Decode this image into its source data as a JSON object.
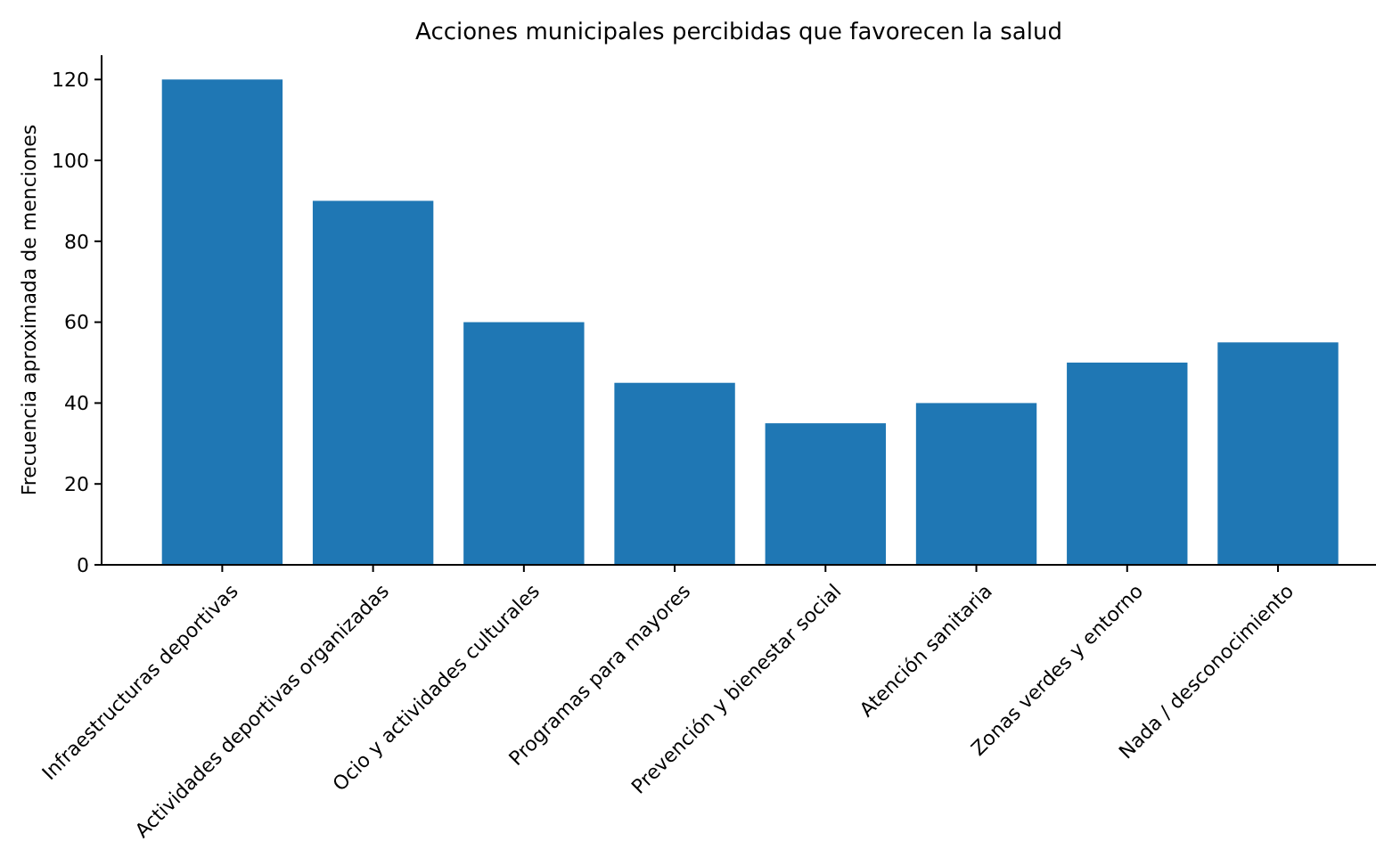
{
  "chart_data": {
    "type": "bar",
    "title": "Acciones municipales percibidas que favorecen la salud",
    "ylabel": "Frecuencia aproximada de menciones",
    "categories": [
      "Infraestructuras deportivas",
      "Actividades deportivas organizadas",
      "Ocio y actividades culturales",
      "Programas para mayores",
      "Prevención y bienestar social",
      "Atención sanitaria",
      "Zonas verdes y entorno",
      "Nada / desconocimiento"
    ],
    "values": [
      120,
      90,
      60,
      45,
      35,
      40,
      50,
      55
    ],
    "color": "#1f77b4",
    "ylim": [
      0,
      126
    ],
    "yticks": [
      0,
      20,
      40,
      60,
      80,
      100,
      120
    ],
    "grid": false
  }
}
